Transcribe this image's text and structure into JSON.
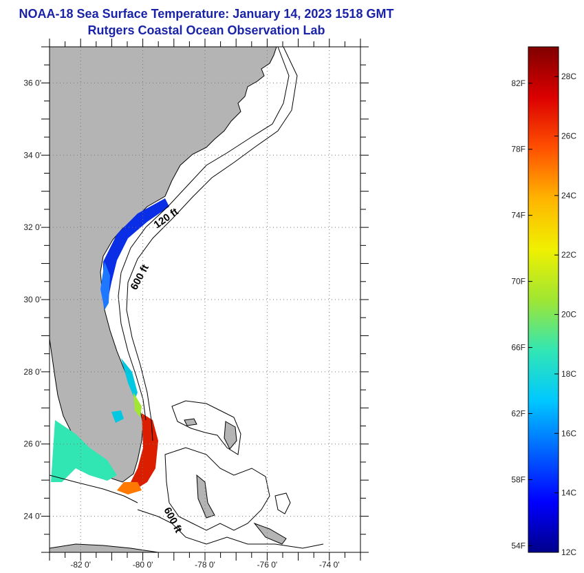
{
  "header": {
    "title": "NOAA-18 Sea Surface Temperature:  January 14, 2023 1518 GMT",
    "subtitle": "Rutgers Coastal Ocean Observation Lab"
  },
  "map": {
    "lon_range": [
      -83,
      -73
    ],
    "lat_range": [
      23,
      37
    ],
    "lat_ticks": [
      {
        "value": 24,
        "label": "24 0'"
      },
      {
        "value": 26,
        "label": "26 0'"
      },
      {
        "value": 28,
        "label": "28 0'"
      },
      {
        "value": 30,
        "label": "30 0'"
      },
      {
        "value": 32,
        "label": "32 0'"
      },
      {
        "value": 34,
        "label": "34 0'"
      },
      {
        "value": 36,
        "label": "36 0'"
      }
    ],
    "lon_ticks": [
      {
        "value": -82,
        "label": "-82 0'"
      },
      {
        "value": -80,
        "label": "-80 0'"
      },
      {
        "value": -78,
        "label": "-78 0'"
      },
      {
        "value": -76,
        "label": "-76 0'"
      },
      {
        "value": -74,
        "label": "-74 0'"
      }
    ],
    "contour_labels": [
      "120 ft",
      "600 ft",
      "600 ft"
    ],
    "colors": {
      "land": "#b4b4b4",
      "grid": "#888888",
      "coast": "#000000"
    }
  },
  "colorbar": {
    "range_c": [
      12,
      29
    ],
    "celsius_ticks": [
      {
        "value": 12,
        "label": "12C"
      },
      {
        "value": 14,
        "label": "14C"
      },
      {
        "value": 16,
        "label": "16C"
      },
      {
        "value": 18,
        "label": "18C"
      },
      {
        "value": 20,
        "label": "20C"
      },
      {
        "value": 22,
        "label": "22C"
      },
      {
        "value": 24,
        "label": "24C"
      },
      {
        "value": 26,
        "label": "26C"
      },
      {
        "value": 28,
        "label": "28C"
      }
    ],
    "fahrenheit_ticks": [
      {
        "value": 54,
        "label": "54F"
      },
      {
        "value": 58,
        "label": "58F"
      },
      {
        "value": 62,
        "label": "62F"
      },
      {
        "value": 66,
        "label": "66F"
      },
      {
        "value": 70,
        "label": "70F"
      },
      {
        "value": 74,
        "label": "74F"
      },
      {
        "value": 78,
        "label": "78F"
      },
      {
        "value": 82,
        "label": "82F"
      }
    ],
    "palette": [
      "#00008b",
      "#0000ff",
      "#0064ff",
      "#00c8ff",
      "#32e6b4",
      "#a0e632",
      "#f0f000",
      "#ffb400",
      "#ff5000",
      "#dc0000",
      "#800000"
    ]
  }
}
